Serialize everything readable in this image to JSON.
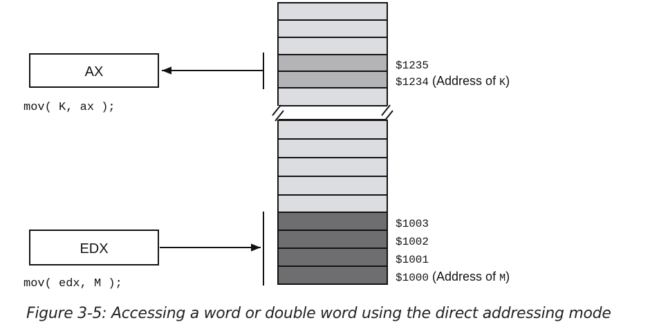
{
  "registers": {
    "ax": {
      "name": "AX",
      "instruction": "mov( K, ax );"
    },
    "edx": {
      "name": "EDX",
      "instruction": "mov( edx, M );"
    }
  },
  "addresses": {
    "k_high": "$1235",
    "k_low_addr": "$1234",
    "k_low_open": "(Address of",
    "k_var": "K",
    "k_low_close": ")",
    "m3": "$1003",
    "m2": "$1002",
    "m1": "$1001",
    "m0_addr": "$1000",
    "m0_open": "(Address of",
    "m0_var": "M",
    "m0_close": ")"
  },
  "colors": {
    "cell_light": "#dcdde0",
    "cell_medium": "#b4b4b6",
    "cell_dark": "#6e6e70",
    "stroke": "#111111"
  },
  "caption": "Figure 3-5: Accessing a word or double word using the direct addressing mode"
}
